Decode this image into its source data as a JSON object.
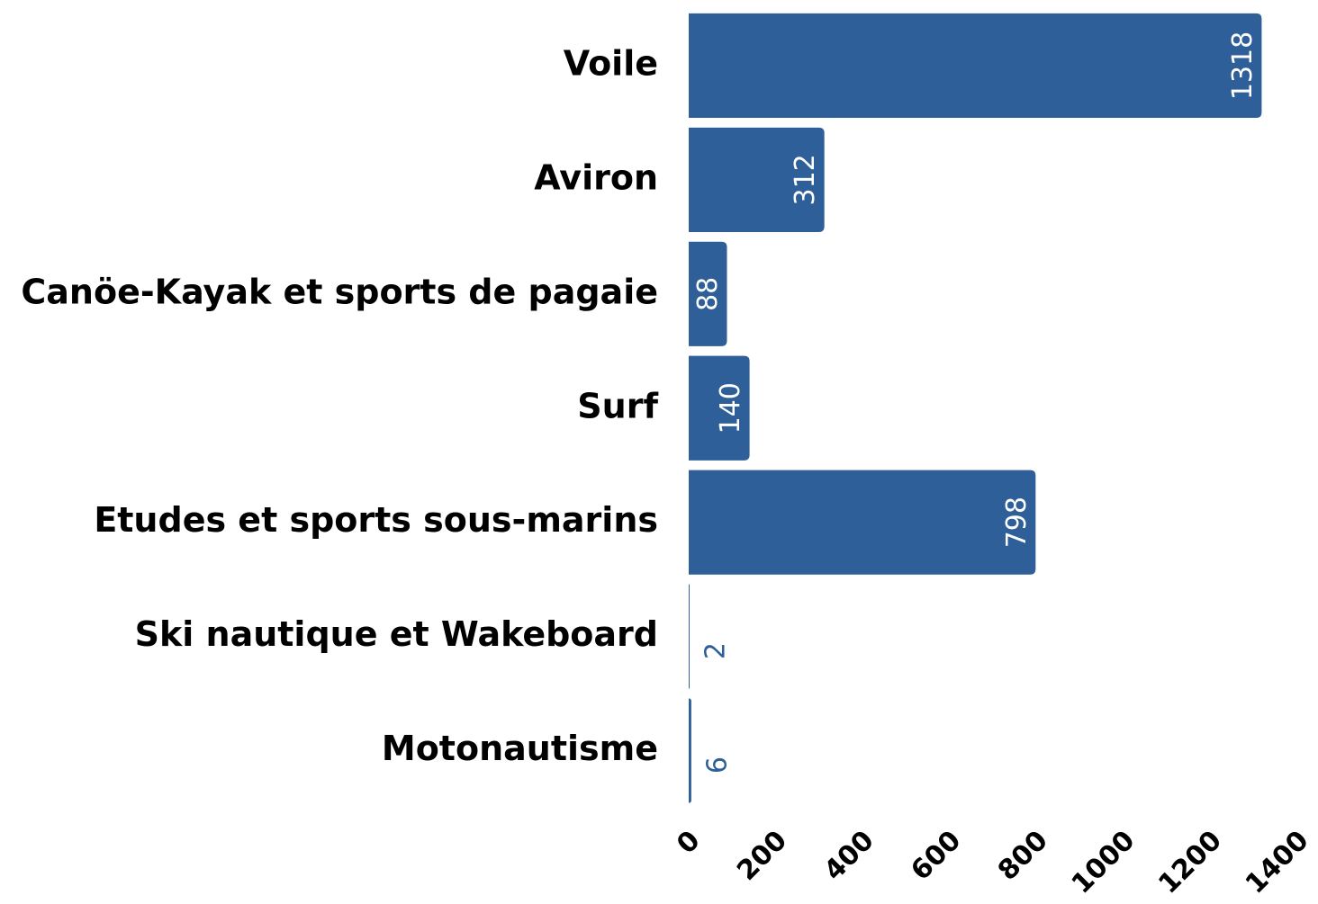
{
  "chart_data": {
    "type": "barh",
    "categories": [
      "Voile",
      "Aviron",
      "Canöe-Kayak et sports de pagaie",
      "Surf",
      "Etudes et sports sous-marins",
      "Ski nautique et Wakeboard",
      "Motonautisme"
    ],
    "values": [
      1318,
      312,
      88,
      140,
      798,
      2,
      6
    ],
    "color": "#2e5f98",
    "xlim": [
      0,
      1400
    ],
    "xticks": [
      0,
      200,
      400,
      600,
      800,
      1000,
      1200,
      1400
    ]
  }
}
